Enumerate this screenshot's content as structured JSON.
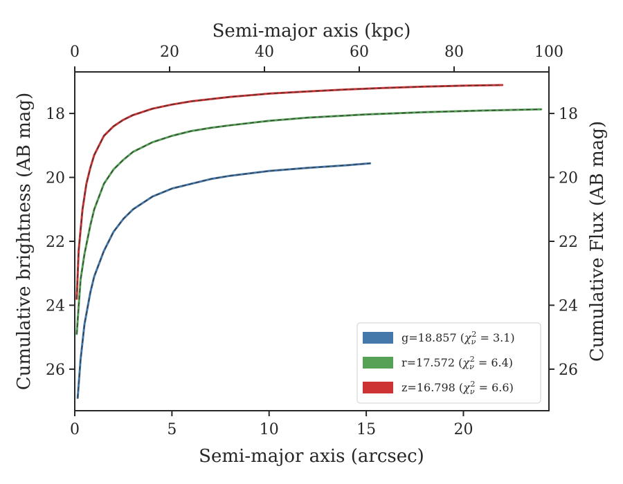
{
  "chart_data": {
    "type": "line",
    "xlabel_bottom": "Semi-major axis (arcsec)",
    "xlabel_top": "Semi-major axis (kpc)",
    "ylabel_left": "Cumulative brightness (AB mag)",
    "ylabel_right": "Cumulative Flux (AB mag)",
    "xlim": [
      0,
      24.4
    ],
    "xlim_top": [
      0,
      100
    ],
    "ylim": [
      27.3,
      16.7
    ],
    "y_inverted": true,
    "xticks_bottom": [
      0,
      5,
      10,
      15,
      20
    ],
    "xticks_top": [
      0,
      20,
      40,
      60,
      80,
      100
    ],
    "yticks": [
      18,
      20,
      22,
      24,
      26
    ],
    "grid": false,
    "legend_position": "lower-right",
    "series": [
      {
        "band": "g",
        "name": "g=18.857",
        "chi2": "3.1",
        "color": "#4477aa",
        "x": [
          0.15,
          0.3,
          0.5,
          0.8,
          1.0,
          1.5,
          2.0,
          2.5,
          3.0,
          4.0,
          5.0,
          6.0,
          7.0,
          8.0,
          10.0,
          12.0,
          14.0,
          15.2
        ],
        "y": [
          26.9,
          25.7,
          24.6,
          23.6,
          23.1,
          22.3,
          21.7,
          21.3,
          21.0,
          20.6,
          20.35,
          20.2,
          20.05,
          19.95,
          19.8,
          19.7,
          19.62,
          19.56
        ]
      },
      {
        "band": "r",
        "name": "r=17.572",
        "chi2": "6.4",
        "color": "#55a155",
        "x": [
          0.1,
          0.3,
          0.5,
          0.8,
          1.0,
          1.5,
          2.0,
          2.5,
          3.0,
          4.0,
          5.0,
          6.0,
          7.0,
          8.0,
          10.0,
          12.0,
          15.0,
          18.0,
          21.0,
          24.0
        ],
        "y": [
          24.9,
          23.2,
          22.4,
          21.5,
          21.0,
          20.2,
          19.75,
          19.45,
          19.2,
          18.9,
          18.7,
          18.55,
          18.45,
          18.37,
          18.23,
          18.13,
          18.03,
          17.96,
          17.91,
          17.87
        ]
      },
      {
        "band": "z",
        "name": "z=16.798",
        "chi2": "6.6",
        "color": "#cc3333",
        "x": [
          0.1,
          0.2,
          0.4,
          0.6,
          0.8,
          1.0,
          1.5,
          2.0,
          2.5,
          3.0,
          4.0,
          5.0,
          6.0,
          8.0,
          10.0,
          12.0,
          14.0,
          16.0,
          18.0,
          20.0,
          22.0
        ],
        "y": [
          23.8,
          22.3,
          21.0,
          20.2,
          19.7,
          19.3,
          18.7,
          18.4,
          18.2,
          18.05,
          17.85,
          17.72,
          17.62,
          17.48,
          17.38,
          17.31,
          17.25,
          17.2,
          17.16,
          17.13,
          17.11
        ]
      }
    ]
  }
}
